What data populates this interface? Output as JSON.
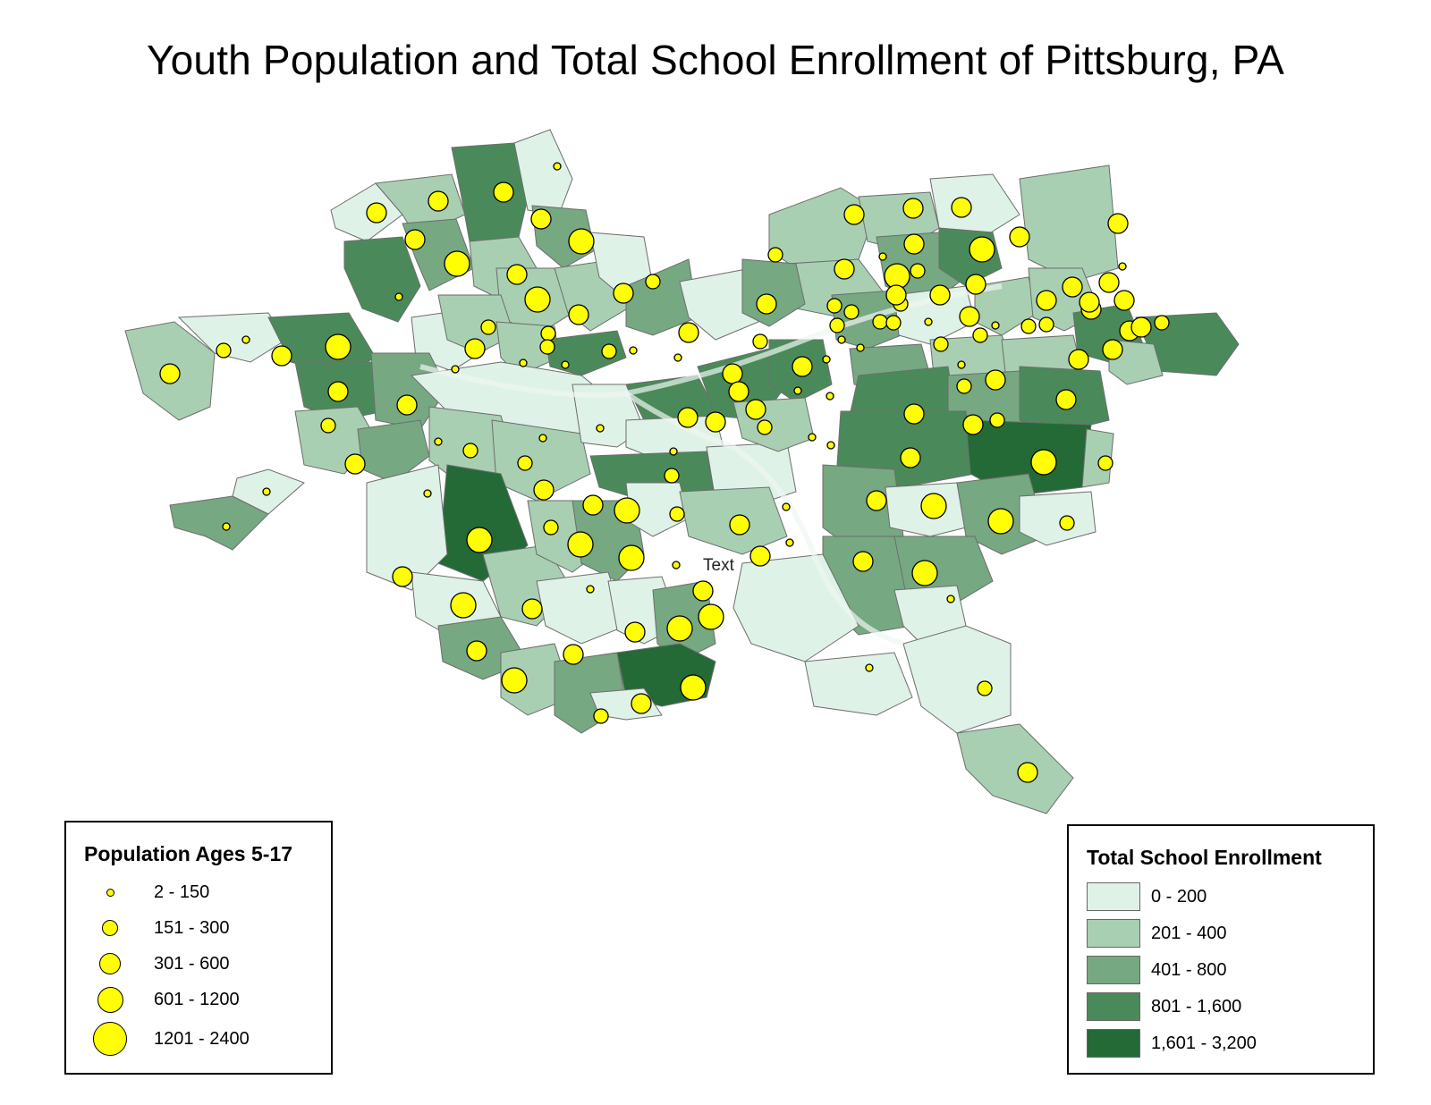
{
  "title": "Youth Population and Total School Enrollment of Pittsburg, PA",
  "map_label": "Text",
  "legend_population": {
    "title": "Population Ages 5-17",
    "classes": [
      {
        "label": "2 - 150",
        "symbol": "small-dot"
      },
      {
        "label": "151 - 300",
        "symbol": "medium-dot"
      },
      {
        "label": "301 - 600",
        "symbol": "large-dot"
      },
      {
        "label": "601 - 1200",
        "symbol": "x-large-dot"
      },
      {
        "label": "1201 - 2400",
        "symbol": "xx-large-dot"
      }
    ],
    "symbol_color": "#ffff00"
  },
  "legend_enrollment": {
    "title": "Total School Enrollment",
    "classes": [
      {
        "label": "0 - 200",
        "color": "#dff2e8"
      },
      {
        "label": "201 - 400",
        "color": "#a8cfb2"
      },
      {
        "label": "401 - 800",
        "color": "#76a882"
      },
      {
        "label": "801 - 1,600",
        "color": "#4a8a5a"
      },
      {
        "label": "1,601 - 3,200",
        "color": "#236a37"
      }
    ]
  }
}
